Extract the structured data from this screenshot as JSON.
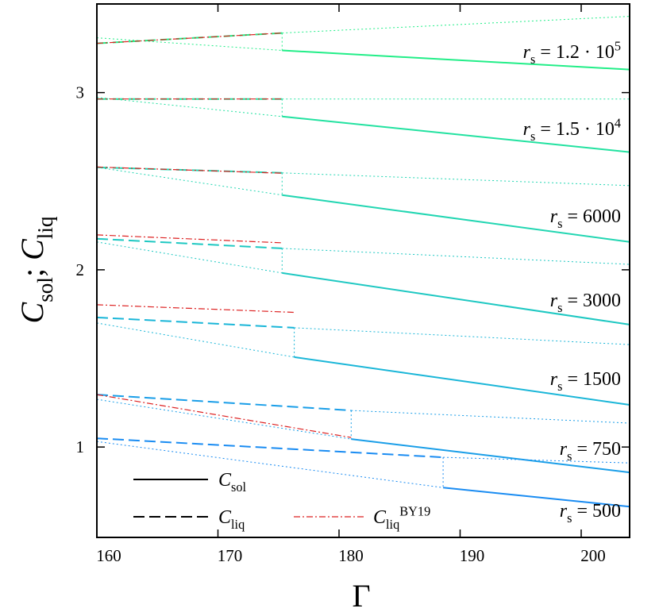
{
  "chart_data": {
    "type": "line",
    "x_label": [
      {
        "text": "Γ"
      }
    ],
    "y_label": [
      {
        "text": "C",
        "italic": true
      },
      {
        "text": "sol",
        "shift": "sub"
      },
      {
        "text": ";  "
      },
      {
        "text": "C",
        "italic": true
      },
      {
        "text": "liq",
        "shift": "sub"
      }
    ],
    "xlim": [
      160,
      204
    ],
    "ylim": [
      0.49,
      3.5
    ],
    "xticks": [
      160,
      170,
      180,
      190,
      200
    ],
    "yticks": [
      1,
      2,
      3
    ],
    "legend": [
      {
        "style": "solid",
        "color": "#000000",
        "label": [
          {
            "text": "C",
            "italic": true
          },
          {
            "text": "sol",
            "shift": "sub"
          }
        ]
      },
      {
        "style": "dashed",
        "color": "#000000",
        "label": [
          {
            "text": "C",
            "italic": true
          },
          {
            "text": "liq",
            "shift": "sub"
          }
        ]
      },
      {
        "style": "dashdot",
        "color": "#dd2222",
        "label": [
          {
            "text": "C",
            "italic": true
          },
          {
            "text": "liq",
            "shift": "sub"
          },
          {
            "text": "BY19",
            "shift": "sup"
          }
        ]
      }
    ],
    "annotations": [
      [
        {
          "text": "r",
          "italic": true
        },
        {
          "text": "s",
          "shift": "sub"
        },
        {
          "text": " = 1.2 · 10"
        },
        {
          "text": "5",
          "shift": "sup"
        }
      ],
      [
        {
          "text": "r",
          "italic": true
        },
        {
          "text": "s",
          "shift": "sub"
        },
        {
          "text": " = 1.5 · 10"
        },
        {
          "text": "4",
          "shift": "sup"
        }
      ],
      [
        {
          "text": "r",
          "italic": true
        },
        {
          "text": "s",
          "shift": "sub"
        },
        {
          "text": " = 6000"
        }
      ],
      [
        {
          "text": "r",
          "italic": true
        },
        {
          "text": "s",
          "shift": "sub"
        },
        {
          "text": " = 3000"
        }
      ],
      [
        {
          "text": "r",
          "italic": true
        },
        {
          "text": "s",
          "shift": "sub"
        },
        {
          "text": " = 1500"
        }
      ],
      [
        {
          "text": "r",
          "italic": true
        },
        {
          "text": "s",
          "shift": "sub"
        },
        {
          "text": " = 750"
        }
      ],
      [
        {
          "text": "r",
          "italic": true
        },
        {
          "text": "s",
          "shift": "sub"
        },
        {
          "text": " = 500"
        }
      ]
    ],
    "series": [
      {
        "style": "dashed",
        "color": "#22ee88",
        "x": [
          160,
          175.3
        ],
        "values": [
          3.278,
          3.336
        ]
      },
      {
        "style": "dotted",
        "color": "#22ee88",
        "x": [
          175.3,
          204
        ],
        "values": [
          3.336,
          3.43
        ]
      },
      {
        "style": "solid",
        "color": "#22ee88",
        "x": [
          175.3,
          204
        ],
        "values": [
          3.238,
          3.13
        ]
      },
      {
        "style": "dotted",
        "color": "#22ee88",
        "x": [
          160,
          175.3
        ],
        "values": [
          3.309,
          3.238
        ]
      },
      {
        "style": "dotted",
        "color": "#22ee88",
        "x": [
          175.3,
          175.3
        ],
        "values": [
          3.336,
          3.238
        ]
      },
      {
        "style": "dashdot",
        "color": "#dd2222",
        "x": [
          160,
          175.3
        ],
        "values": [
          3.278,
          3.336
        ]
      },
      {
        "style": "dashed",
        "color": "#22e2a0",
        "x": [
          160,
          175.3
        ],
        "values": [
          2.964,
          2.964
        ]
      },
      {
        "style": "dotted",
        "color": "#22e2a0",
        "x": [
          175.3,
          204
        ],
        "values": [
          2.964,
          2.964
        ]
      },
      {
        "style": "solid",
        "color": "#22e2a0",
        "x": [
          175.3,
          204
        ],
        "values": [
          2.865,
          2.664
        ]
      },
      {
        "style": "dotted",
        "color": "#22e2a0",
        "x": [
          160,
          175.3
        ],
        "values": [
          2.973,
          2.865
        ]
      },
      {
        "style": "dotted",
        "color": "#22e2a0",
        "x": [
          175.3,
          175.3
        ],
        "values": [
          2.964,
          2.865
        ]
      },
      {
        "style": "dashdot",
        "color": "#dd2222",
        "x": [
          160,
          175.3
        ],
        "values": [
          2.964,
          2.964
        ]
      },
      {
        "style": "dashed",
        "color": "#22d6b2",
        "x": [
          160,
          175.3
        ],
        "values": [
          2.578,
          2.547
        ]
      },
      {
        "style": "dotted",
        "color": "#22d6b2",
        "x": [
          175.3,
          204
        ],
        "values": [
          2.547,
          2.475
        ]
      },
      {
        "style": "solid",
        "color": "#22d6b2",
        "x": [
          175.3,
          204
        ],
        "values": [
          2.422,
          2.157
        ]
      },
      {
        "style": "dotted",
        "color": "#22d6b2",
        "x": [
          160,
          175.3
        ],
        "values": [
          2.578,
          2.422
        ]
      },
      {
        "style": "dotted",
        "color": "#22d6b2",
        "x": [
          175.3,
          175.3
        ],
        "values": [
          2.547,
          2.422
        ]
      },
      {
        "style": "dashdot",
        "color": "#dd2222",
        "x": [
          160,
          175.3
        ],
        "values": [
          2.58,
          2.545
        ]
      },
      {
        "style": "dashed",
        "color": "#1ec8c2",
        "x": [
          160,
          175.3
        ],
        "values": [
          2.175,
          2.121
        ]
      },
      {
        "style": "dotted",
        "color": "#1ec8c2",
        "x": [
          175.3,
          204
        ],
        "values": [
          2.121,
          2.031
        ]
      },
      {
        "style": "solid",
        "color": "#1ec8c2",
        "x": [
          175.3,
          204
        ],
        "values": [
          1.982,
          1.691
        ]
      },
      {
        "style": "dotted",
        "color": "#1ec8c2",
        "x": [
          160,
          175.3
        ],
        "values": [
          2.157,
          1.982
        ]
      },
      {
        "style": "dotted",
        "color": "#1ec8c2",
        "x": [
          175.3,
          175.3
        ],
        "values": [
          2.121,
          1.982
        ]
      },
      {
        "style": "dashdot",
        "color": "#dd2222",
        "x": [
          160,
          175.3
        ],
        "values": [
          2.197,
          2.152
        ]
      },
      {
        "style": "dashed",
        "color": "#1ab6d8",
        "x": [
          160,
          176.3
        ],
        "values": [
          1.731,
          1.673
        ]
      },
      {
        "style": "dotted",
        "color": "#1ab6d8",
        "x": [
          176.3,
          204
        ],
        "values": [
          1.673,
          1.578
        ]
      },
      {
        "style": "solid",
        "color": "#1ab6d8",
        "x": [
          176.3,
          204
        ],
        "values": [
          1.507,
          1.238
        ]
      },
      {
        "style": "dotted",
        "color": "#1ab6d8",
        "x": [
          160,
          176.3
        ],
        "values": [
          1.7,
          1.507
        ]
      },
      {
        "style": "dotted",
        "color": "#1ab6d8",
        "x": [
          176.3,
          176.3
        ],
        "values": [
          1.673,
          1.507
        ]
      },
      {
        "style": "dashdot",
        "color": "#dd2222",
        "x": [
          160,
          176.3
        ],
        "values": [
          1.803,
          1.76
        ]
      },
      {
        "style": "dashed",
        "color": "#1a9ee8",
        "x": [
          160,
          181
        ],
        "values": [
          1.296,
          1.206
        ]
      },
      {
        "style": "dotted",
        "color": "#1a9ee8",
        "x": [
          181,
          204
        ],
        "values": [
          1.206,
          1.135
        ]
      },
      {
        "style": "solid",
        "color": "#1a9ee8",
        "x": [
          181,
          204
        ],
        "values": [
          1.045,
          0.857
        ]
      },
      {
        "style": "dotted",
        "color": "#1a9ee8",
        "x": [
          160,
          181
        ],
        "values": [
          1.269,
          1.045
        ]
      },
      {
        "style": "dotted",
        "color": "#1a9ee8",
        "x": [
          181,
          181
        ],
        "values": [
          1.206,
          1.045
        ]
      },
      {
        "style": "dashdot",
        "color": "#dd2222",
        "x": [
          160,
          181
        ],
        "values": [
          1.296,
          1.054
        ]
      },
      {
        "style": "dashed",
        "color": "#1a8cf2",
        "x": [
          160,
          188.6
        ],
        "values": [
          1.049,
          0.942
        ]
      },
      {
        "style": "dotted",
        "color": "#1a8cf2",
        "x": [
          188.6,
          204
        ],
        "values": [
          0.942,
          0.91
        ]
      },
      {
        "style": "solid",
        "color": "#1a8cf2",
        "x": [
          188.6,
          204
        ],
        "values": [
          0.771,
          0.664
        ]
      },
      {
        "style": "dotted",
        "color": "#1a8cf2",
        "x": [
          160,
          188.6
        ],
        "values": [
          1.031,
          0.771
        ]
      },
      {
        "style": "dotted",
        "color": "#1a8cf2",
        "x": [
          188.6,
          188.6
        ],
        "values": [
          0.942,
          0.771
        ]
      }
    ]
  }
}
